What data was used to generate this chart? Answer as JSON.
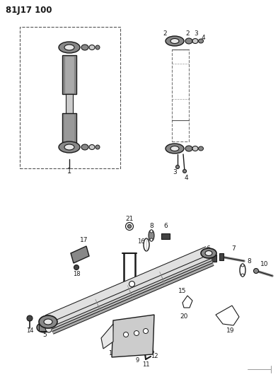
{
  "title": "81J17 100",
  "bg_color": "#ffffff",
  "line_color": "#1a1a1a",
  "fig_width": 3.93,
  "fig_height": 5.33,
  "dpi": 100,
  "gray_dark": "#444444",
  "gray_mid": "#888888",
  "gray_light": "#cccccc",
  "gray_lighter": "#e8e8e8"
}
